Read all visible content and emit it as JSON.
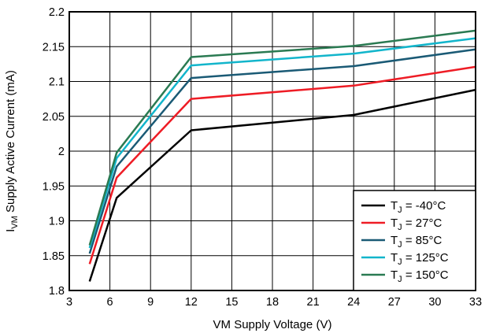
{
  "chart_data": {
    "type": "line",
    "title": "",
    "xlabel": "VM Supply Voltage (V)",
    "ylabel": {
      "prefix": "I",
      "subscript": "VM",
      "suffix": " Supply Active Current (mA)"
    },
    "xlim": [
      3,
      33
    ],
    "ylim": [
      1.8,
      2.2
    ],
    "x_ticks": [
      3,
      6,
      9,
      12,
      15,
      18,
      21,
      24,
      27,
      30,
      33
    ],
    "x_tick_labels": [
      "3",
      "6",
      "9",
      "12",
      "15",
      "18",
      "21",
      "24",
      "27",
      "30",
      "33"
    ],
    "y_ticks": [
      1.8,
      1.85,
      1.9,
      1.95,
      2.0,
      2.05,
      2.1,
      2.15,
      2.2
    ],
    "y_tick_labels": [
      "1.8",
      "1.85",
      "1.9",
      "1.95",
      "2",
      "2.05",
      "2.1",
      "2.15",
      "2.2"
    ],
    "grid": true,
    "legend_position": "bottom-right",
    "series": [
      {
        "name": "TJ = -40°C",
        "label_parts": {
          "prefix": "T",
          "subscript": "J",
          "suffix": " = -40°C"
        },
        "color": "#000000",
        "x": [
          4.5,
          6.5,
          12,
          24,
          33
        ],
        "y": [
          1.813,
          1.933,
          2.03,
          2.052,
          2.088
        ]
      },
      {
        "name": "TJ = 27°C",
        "label_parts": {
          "prefix": "T",
          "subscript": "J",
          "suffix": " = 27°C"
        },
        "color": "#ee1c25",
        "x": [
          4.5,
          6.5,
          12,
          24,
          33
        ],
        "y": [
          1.838,
          1.962,
          2.075,
          2.094,
          2.121
        ]
      },
      {
        "name": "TJ = 85°C",
        "label_parts": {
          "prefix": "T",
          "subscript": "J",
          "suffix": " = 85°C"
        },
        "color": "#1a5a75",
        "x": [
          4.5,
          6.5,
          12,
          24,
          33
        ],
        "y": [
          1.853,
          1.978,
          2.105,
          2.122,
          2.146
        ]
      },
      {
        "name": "TJ = 125°C",
        "label_parts": {
          "prefix": "T",
          "subscript": "J",
          "suffix": " = 125°C"
        },
        "color": "#12b5cb",
        "x": [
          4.5,
          6.5,
          12,
          24,
          33
        ],
        "y": [
          1.861,
          1.99,
          2.123,
          2.14,
          2.162
        ]
      },
      {
        "name": "TJ = 150°C",
        "label_parts": {
          "prefix": "T",
          "subscript": "J",
          "suffix": " = 150°C"
        },
        "color": "#2a7a52",
        "x": [
          4.5,
          6.5,
          12,
          24,
          33
        ],
        "y": [
          1.865,
          1.998,
          2.135,
          2.151,
          2.173
        ]
      }
    ]
  }
}
